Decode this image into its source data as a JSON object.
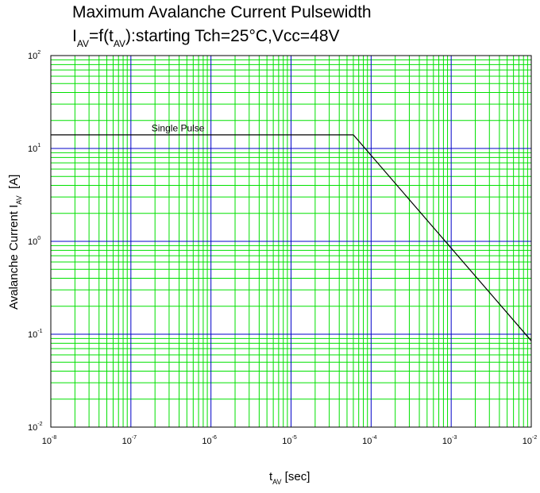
{
  "chart_data": {
    "type": "line",
    "title": "Maximum Avalanche Current Pulsewidth",
    "subtitle": {
      "p1": "I",
      "s1": "AV",
      "p2": "=f(t",
      "s2": "AV",
      "p3": "):starting Tch=25°C,Vcc=48V"
    },
    "xlabel": {
      "base": "t",
      "sub": "AV",
      "rest": " [sec]"
    },
    "ylabel": {
      "base": "Avalanche Current I",
      "sub": "AV",
      "rest": "  [A]"
    },
    "x_scale": "log",
    "y_scale": "log",
    "xlim": [
      1e-08,
      0.01
    ],
    "ylim": [
      0.01,
      100
    ],
    "x_ticks": [
      {
        "base": "10",
        "exp": "-8",
        "value": 1e-08
      },
      {
        "base": "10",
        "exp": "-7",
        "value": 1e-07
      },
      {
        "base": "10",
        "exp": "-6",
        "value": 1e-06
      },
      {
        "base": "10",
        "exp": "-5",
        "value": 1e-05
      },
      {
        "base": "10",
        "exp": "-4",
        "value": 0.0001
      },
      {
        "base": "10",
        "exp": "-3",
        "value": 0.001
      },
      {
        "base": "10",
        "exp": "-2",
        "value": 0.01
      }
    ],
    "y_ticks": [
      {
        "base": "10",
        "exp": "-2",
        "value": 0.01
      },
      {
        "base": "10",
        "exp": "-1",
        "value": 0.1
      },
      {
        "base": "10",
        "exp": "0",
        "value": 1
      },
      {
        "base": "10",
        "exp": "1",
        "value": 10
      },
      {
        "base": "10",
        "exp": "2",
        "value": 100
      }
    ],
    "grid": true,
    "colors": {
      "major_grid": "#0000c8",
      "minor_grid": "#00e000",
      "line": "#000000",
      "frame": "#000000"
    },
    "series": [
      {
        "name": "Single Pulse",
        "x": [
          1e-08,
          6e-05,
          0.01
        ],
        "y": [
          14,
          14,
          0.085
        ]
      }
    ],
    "annotations": [
      {
        "text": "Single Pulse",
        "x": 3.2e-07,
        "y": 16.5
      }
    ]
  }
}
